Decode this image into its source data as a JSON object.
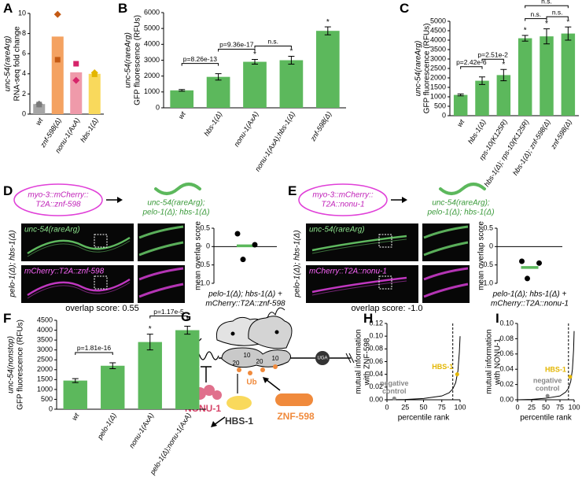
{
  "chart_data": [
    {
      "type": "bar",
      "panel": "A",
      "ylabel_reporter": "unc-54(rareArg)",
      "reporter_color": "#5aa9e0",
      "ylabel": "RNA-seq fold change",
      "categories": [
        "wt",
        "znf-598(Δ)",
        "nonu-1(AxA)",
        "hbs-1(Δ)"
      ],
      "values": [
        1.0,
        7.7,
        4.15,
        4.0
      ],
      "colors": [
        "#a6a6a6",
        "#f4a261",
        "#ef9aaa",
        "#f9d95c"
      ],
      "replicates": [
        {
          "marker": "diamond",
          "values": [
            1.0,
            9.9,
            3.35,
            4.1
          ]
        },
        {
          "marker": "square",
          "values": [
            0.95,
            5.4,
            5.0,
            3.95
          ]
        }
      ],
      "point_colors": [
        "#7a7a7a",
        "#c45a14",
        "#d6246a",
        "#e3b600"
      ],
      "ylim": [
        0,
        10
      ],
      "yticks": [
        0,
        2,
        4,
        6,
        8,
        10
      ]
    },
    {
      "type": "bar",
      "panel": "B",
      "ylabel_reporter": "unc-54(rareArg)",
      "reporter_color": "#5aa9e0",
      "ylabel": "GFP fluorescence (RFUs)",
      "categories": [
        "wt",
        "hbs-1(Δ)",
        "nonu-1(AxA)",
        "nonu-1(AxA);hbs-1(Δ)",
        "znf-598(Δ)"
      ],
      "values": [
        1100,
        1950,
        2900,
        3000,
        4850
      ],
      "errors": [
        50,
        200,
        150,
        250,
        250
      ],
      "color": "#5cb85c",
      "stars": [
        null,
        null,
        "*",
        "*",
        "*"
      ],
      "comparisons": [
        {
          "between": [
            0,
            1
          ],
          "label": "p=8.26e-13"
        },
        {
          "between": [
            1,
            2
          ],
          "label": "p=9.36e-17"
        },
        {
          "between": [
            2,
            3
          ],
          "label": "n.s."
        }
      ],
      "ylim": [
        0,
        6000
      ],
      "yticks": [
        0,
        1000,
        2000,
        3000,
        4000,
        5000,
        6000
      ]
    },
    {
      "type": "bar",
      "panel": "C",
      "ylabel_reporter": "unc-54(rareArg)",
      "reporter_color": "#5aa9e0",
      "ylabel": "GFP fluorescence (RFUs)",
      "categories": [
        "wt",
        "hbs-1(Δ)",
        "rps-10(K125R)",
        "hbs-1(Δ); rps-10(K125R)",
        "hbs-1(Δ); znf-598(Δ)",
        "znf-598(Δ)"
      ],
      "values": [
        1100,
        1850,
        2150,
        4100,
        4200,
        4350
      ],
      "errors": [
        50,
        200,
        300,
        150,
        400,
        350
      ],
      "color": "#5cb85c",
      "stars": [
        null,
        null,
        "*",
        "*",
        "*",
        "*"
      ],
      "comparisons": [
        {
          "between": [
            0,
            1
          ],
          "label": "p=2.42e-6"
        },
        {
          "between": [
            1,
            2
          ],
          "label": "p=2.51e-2"
        },
        {
          "between": [
            3,
            4
          ],
          "label": "n.s."
        },
        {
          "between": [
            4,
            5
          ],
          "label": "n.s."
        },
        {
          "between": [
            3,
            5
          ],
          "label": "n.s."
        }
      ],
      "ylim": [
        0,
        5000
      ],
      "yticks": [
        0,
        500,
        1000,
        1500,
        2000,
        2500,
        3000,
        3500,
        4000,
        4500,
        5000
      ]
    },
    {
      "type": "dot",
      "ylabel": "mean overlap score",
      "xlabel": [
        "pelo-1(Δ); hbs-1(Δ) +",
        "mCherry::T2A::znf-598"
      ],
      "values": [
        0.35,
        0.05,
        -0.35
      ],
      "mean": 0.02,
      "color": "#000000",
      "mean_color": "#5cb85c",
      "zero_line": true,
      "ylim": [
        -1.0,
        0.5
      ],
      "yticks": [
        {
          "value": -1,
          "label": "-1.0"
        },
        {
          "value": -0.5,
          "label": "-0.5"
        },
        0,
        0.5
      ]
    },
    {
      "type": "dot",
      "ylabel": "mean overlap score",
      "xlabel": [
        "pelo-1(Δ); hbs-1(Δ) +",
        "mCherry::T2A::nonu-1"
      ],
      "values": [
        -0.4,
        -0.45,
        -0.87
      ],
      "mean": -0.57,
      "color": "#000000",
      "mean_color": "#5cb85c",
      "zero_line": true,
      "ylim": [
        -1.0,
        0.5
      ],
      "yticks": [
        {
          "value": -1,
          "label": "-1.0"
        },
        {
          "value": -0.5,
          "label": "-0.5"
        },
        0,
        0.5
      ]
    },
    {
      "type": "bar",
      "panel": "F",
      "ylabel_reporter": "unc-54(nonstop)",
      "reporter_color": "#c2188b",
      "ylabel": "GFP fluorescence (RFUs)",
      "categories": [
        "wt",
        "pelo-1(Δ)",
        "nonu-1(AxA)",
        "pelo-1(Δ);nonu-1(AxA)"
      ],
      "values": [
        1450,
        2200,
        3400,
        4000
      ],
      "errors": [
        100,
        150,
        400,
        200
      ],
      "color": "#5cb85c",
      "stars": [
        null,
        null,
        "*",
        "*"
      ],
      "comparisons": [
        {
          "between": [
            0,
            1
          ],
          "label": "p=1.81e-16"
        },
        {
          "between": [
            2,
            3
          ],
          "label": "p=1.17e-5"
        }
      ],
      "ylim": [
        0,
        4500
      ],
      "yticks": [
        0,
        500,
        1000,
        1500,
        2000,
        2500,
        3000,
        3500,
        4000,
        4500
      ]
    },
    {
      "type": "line",
      "panel": "H",
      "ylabel": [
        "mutual information",
        "with ZNF-598"
      ],
      "xlabel": "percentile rank",
      "x": [
        0,
        25,
        50,
        75,
        85,
        90,
        94,
        97,
        99,
        100
      ],
      "values": [
        0,
        0.0005,
        0.002,
        0.006,
        0.011,
        0.017,
        0.027,
        0.045,
        0.075,
        0.1
      ],
      "color": "#000000",
      "vline": 90,
      "highlights": [
        {
          "label": [
            "HBS-1"
          ],
          "x": 96,
          "y": 0.04,
          "color": "#e3b600"
        },
        {
          "label": [
            "negative",
            "control"
          ],
          "x": 10,
          "y": 0.002,
          "color": "#888888"
        }
      ],
      "xlim": [
        0,
        100
      ],
      "xticks": [
        0,
        25,
        50,
        75,
        100
      ],
      "ylim": [
        0,
        0.12
      ],
      "yticks": [
        {
          "value": 0,
          "label": "0.00"
        },
        0.02,
        0.04,
        0.06,
        0.08,
        {
          "value": 0.1,
          "label": "0.10"
        },
        0.12
      ]
    },
    {
      "type": "line",
      "panel": "I",
      "ylabel": [
        "mutual information",
        "with NONU-1"
      ],
      "xlabel": "percentile rank",
      "x": [
        0,
        25,
        50,
        75,
        85,
        90,
        94,
        97,
        99,
        100
      ],
      "values": [
        0,
        0.0005,
        0.002,
        0.005,
        0.01,
        0.015,
        0.024,
        0.04,
        0.065,
        0.09
      ],
      "color": "#000000",
      "vline": 90,
      "highlights": [
        {
          "label": [
            "HBS-1"
          ],
          "x": 93,
          "y": 0.03,
          "color": "#e3b600"
        },
        {
          "label": [
            "negative",
            "control"
          ],
          "x": 53,
          "y": 0.005,
          "color": "#888888"
        }
      ],
      "xlim": [
        0,
        100
      ],
      "xticks": [
        0,
        25,
        50,
        75,
        100
      ],
      "ylim": [
        0,
        0.1
      ],
      "yticks": [
        {
          "value": 0,
          "label": "0.00"
        },
        0.02,
        0.04,
        0.06,
        0.08,
        {
          "value": 0.1,
          "label": "0.10"
        }
      ]
    }
  ],
  "micrographs": [
    {
      "panel": "D",
      "construct": [
        "myo-3::mCherry::",
        "T2A::znf-598"
      ],
      "strain": [
        "unc-54(rareArg);",
        "pelo-1(Δ); hbs-1(Δ)"
      ],
      "side_label": "pelo-1(Δ); hbs-1(Δ)",
      "top_label": "unc-54(rareArg)",
      "bottom_label": "mCherry::T2A::znf-598",
      "caption": "overlap score: 0.55"
    },
    {
      "panel": "E",
      "construct": [
        "myo-3::mCherry::",
        "T2A::nonu-1"
      ],
      "strain": [
        "unc-54(rareArg);",
        "pelo-1(Δ); hbs-1(Δ)"
      ],
      "side_label": "pelo-1(Δ); hbs-1(Δ)",
      "top_label": "unc-54(rareArg)",
      "bottom_label": "mCherry::T2A::nonu-1",
      "caption": "overlap score: -1.0"
    }
  ],
  "diagram": {
    "panel": "G",
    "nonu": "NONU-1",
    "hbs": "HBS-1",
    "znf": "ZNF-598",
    "ub": "Ub",
    "stop": "UGA",
    "numbers": [
      "20",
      "10",
      "20",
      "10"
    ]
  }
}
